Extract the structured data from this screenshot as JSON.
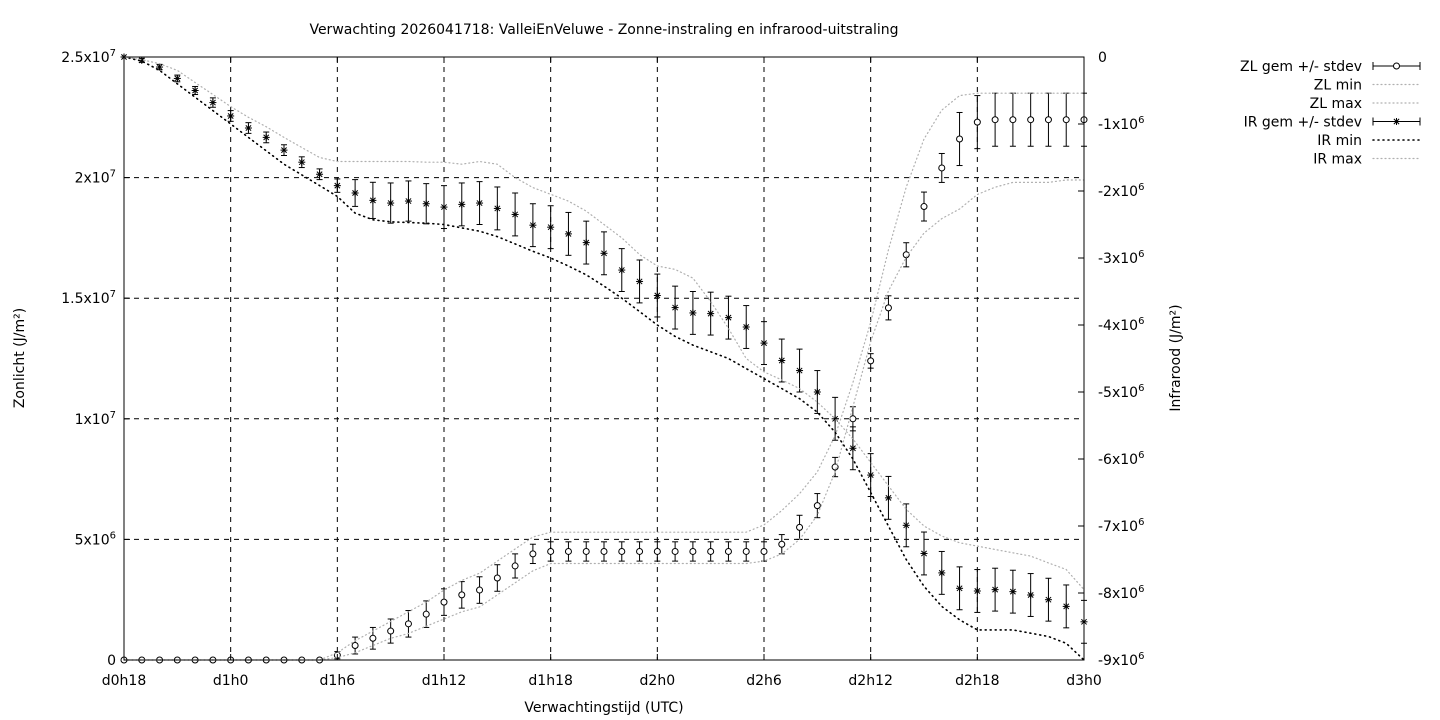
{
  "chart_data": {
    "type": "line",
    "title": "Verwachting 2026041718: ValleiEnVeluwe - Zonne-instraling en infrarood-uitstraling",
    "xlabel": "Verwachtingstijd (UTC)",
    "ylabel": "Zonlicht (J/m²)",
    "y2label": "Infrarood (J/m²)",
    "x_unit": "hours since d0h18",
    "xlim": [
      0,
      54
    ],
    "ylim": [
      0,
      25000000
    ],
    "y2lim": [
      -9000000,
      0
    ],
    "grid": true,
    "legend_position": "outside-right",
    "x_ticks": [
      {
        "value": 0,
        "label": "d0h18"
      },
      {
        "value": 6,
        "label": "d1h0"
      },
      {
        "value": 12,
        "label": "d1h6"
      },
      {
        "value": 18,
        "label": "d1h12"
      },
      {
        "value": 24,
        "label": "d1h18"
      },
      {
        "value": 30,
        "label": "d2h0"
      },
      {
        "value": 36,
        "label": "d2h6"
      },
      {
        "value": 42,
        "label": "d2h12"
      },
      {
        "value": 48,
        "label": "d2h18"
      },
      {
        "value": 54,
        "label": "d3h0"
      }
    ],
    "y_ticks": [
      {
        "value": 0,
        "mant": "0",
        "exp": ""
      },
      {
        "value": 5000000,
        "mant": "5x10",
        "exp": "6"
      },
      {
        "value": 10000000,
        "mant": "1x10",
        "exp": "7"
      },
      {
        "value": 15000000,
        "mant": "1.5x10",
        "exp": "7"
      },
      {
        "value": 20000000,
        "mant": "2x10",
        "exp": "7"
      },
      {
        "value": 25000000,
        "mant": "2.5x10",
        "exp": "7"
      }
    ],
    "y2_ticks": [
      {
        "value": 0,
        "mant": "0",
        "exp": ""
      },
      {
        "value": -1000000,
        "mant": "-1x10",
        "exp": "6"
      },
      {
        "value": -2000000,
        "mant": "-2x10",
        "exp": "6"
      },
      {
        "value": -3000000,
        "mant": "-3x10",
        "exp": "6"
      },
      {
        "value": -4000000,
        "mant": "-4x10",
        "exp": "6"
      },
      {
        "value": -5000000,
        "mant": "-5x10",
        "exp": "6"
      },
      {
        "value": -6000000,
        "mant": "-6x10",
        "exp": "6"
      },
      {
        "value": -7000000,
        "mant": "-7x10",
        "exp": "6"
      },
      {
        "value": -8000000,
        "mant": "-8x10",
        "exp": "6"
      },
      {
        "value": -9000000,
        "mant": "-9x10",
        "exp": "6"
      }
    ],
    "legend": [
      {
        "label": "ZL gem +/- stdev",
        "style": "errorbar-circle"
      },
      {
        "label": "ZL min",
        "style": "dotted-light"
      },
      {
        "label": "ZL max",
        "style": "dotted-light"
      },
      {
        "label": "IR gem +/- stdev",
        "style": "errorbar-star"
      },
      {
        "label": "IR min",
        "style": "dotted-dark"
      },
      {
        "label": "IR max",
        "style": "dotted-light"
      }
    ],
    "x": [
      0,
      1,
      2,
      3,
      4,
      5,
      6,
      7,
      8,
      9,
      10,
      11,
      12,
      13,
      14,
      15,
      16,
      17,
      18,
      19,
      20,
      21,
      22,
      23,
      24,
      25,
      26,
      27,
      28,
      29,
      30,
      31,
      32,
      33,
      34,
      35,
      36,
      37,
      38,
      39,
      40,
      41,
      42,
      43,
      44,
      45,
      46,
      47,
      48,
      49,
      50,
      51,
      52,
      53,
      54
    ],
    "series": [
      {
        "name": "ZL gem +/- stdev",
        "axis": "y1",
        "marker": "circle",
        "values": [
          0,
          0,
          0,
          0,
          0,
          0,
          0,
          0,
          0,
          0,
          0,
          0,
          200000,
          600000,
          900000,
          1200000,
          1500000,
          1900000,
          2400000,
          2700000,
          2900000,
          3400000,
          3900000,
          4400000,
          4500000,
          4500000,
          4500000,
          4500000,
          4500000,
          4500000,
          4500000,
          4500000,
          4500000,
          4500000,
          4500000,
          4500000,
          4500000,
          4800000,
          5500000,
          6400000,
          8000000,
          10000000,
          12400000,
          14600000,
          16800000,
          18800000,
          20400000,
          21600000,
          22300000,
          22400000,
          22400000,
          22400000,
          22400000,
          22400000,
          22400000
        ],
        "stdev": [
          0,
          0,
          0,
          0,
          0,
          0,
          0,
          0,
          0,
          0,
          0,
          0,
          150000,
          350000,
          450000,
          500000,
          550000,
          550000,
          550000,
          550000,
          550000,
          550000,
          500000,
          400000,
          400000,
          400000,
          400000,
          400000,
          400000,
          400000,
          400000,
          400000,
          400000,
          400000,
          400000,
          400000,
          400000,
          400000,
          500000,
          500000,
          400000,
          500000,
          300000,
          500000,
          500000,
          600000,
          600000,
          1100000,
          1100000,
          1100000,
          1100000,
          1100000,
          1100000,
          1100000,
          1100000
        ]
      },
      {
        "name": "ZL min",
        "axis": "y1",
        "values": [
          0,
          0,
          0,
          0,
          0,
          0,
          0,
          0,
          0,
          0,
          0,
          0,
          100000,
          300000,
          600000,
          900000,
          1100000,
          1400000,
          1700000,
          2000000,
          2200000,
          2700000,
          3200000,
          3700000,
          4000000,
          4000000,
          4000000,
          4000000,
          4000000,
          4000000,
          4000000,
          4000000,
          4000000,
          4000000,
          4000000,
          4000000,
          4100000,
          4400000,
          5000000,
          6000000,
          7800000,
          10500000,
          13200000,
          15300000,
          16700000,
          17700000,
          18300000,
          18700000,
          19300000,
          19600000,
          19800000,
          19800000,
          19800000,
          19900000,
          19900000
        ]
      },
      {
        "name": "ZL max",
        "axis": "y1",
        "values": [
          0,
          0,
          0,
          0,
          0,
          0,
          0,
          0,
          0,
          0,
          0,
          0,
          300000,
          800000,
          1200000,
          1600000,
          2000000,
          2400000,
          2900000,
          3300000,
          3600000,
          4100000,
          4600000,
          5100000,
          5300000,
          5300000,
          5300000,
          5300000,
          5300000,
          5300000,
          5300000,
          5300000,
          5300000,
          5300000,
          5300000,
          5300000,
          5600000,
          6200000,
          6900000,
          7800000,
          9300000,
          11500000,
          14000000,
          17000000,
          19600000,
          21600000,
          22800000,
          23400000,
          23500000,
          23500000,
          23500000,
          23500000,
          23500000,
          23500000,
          23500000
        ]
      },
      {
        "name": "IR gem +/- stdev",
        "axis": "y2",
        "marker": "star",
        "values": [
          0,
          -50000,
          -150000,
          -320000,
          -500000,
          -680000,
          -880000,
          -1060000,
          -1200000,
          -1390000,
          -1570000,
          -1750000,
          -1920000,
          -2030000,
          -2140000,
          -2180000,
          -2150000,
          -2190000,
          -2240000,
          -2200000,
          -2180000,
          -2260000,
          -2350000,
          -2510000,
          -2540000,
          -2640000,
          -2770000,
          -2930000,
          -3180000,
          -3350000,
          -3560000,
          -3740000,
          -3820000,
          -3830000,
          -3890000,
          -4030000,
          -4270000,
          -4530000,
          -4680000,
          -5000000,
          -5400000,
          -5840000,
          -6240000,
          -6580000,
          -6990000,
          -7410000,
          -7700000,
          -7930000,
          -7970000,
          -7950000,
          -7980000,
          -8030000,
          -8100000,
          -8200000,
          -8430000
        ],
        "stdev": [
          0,
          30000,
          40000,
          50000,
          60000,
          70000,
          80000,
          80000,
          80000,
          80000,
          80000,
          80000,
          100000,
          200000,
          270000,
          300000,
          300000,
          300000,
          320000,
          320000,
          320000,
          320000,
          320000,
          320000,
          320000,
          320000,
          320000,
          320000,
          320000,
          320000,
          320000,
          320000,
          320000,
          320000,
          320000,
          320000,
          320000,
          320000,
          320000,
          320000,
          320000,
          320000,
          320000,
          320000,
          320000,
          320000,
          320000,
          320000,
          320000,
          320000,
          320000,
          320000,
          320000,
          320000,
          320000
        ]
      },
      {
        "name": "IR min",
        "axis": "y2",
        "values": [
          0,
          -60000,
          -200000,
          -400000,
          -600000,
          -800000,
          -1000000,
          -1200000,
          -1400000,
          -1600000,
          -1760000,
          -1920000,
          -2080000,
          -2330000,
          -2430000,
          -2460000,
          -2470000,
          -2480000,
          -2500000,
          -2550000,
          -2600000,
          -2680000,
          -2790000,
          -2900000,
          -3000000,
          -3120000,
          -3250000,
          -3420000,
          -3600000,
          -3800000,
          -4000000,
          -4170000,
          -4300000,
          -4400000,
          -4500000,
          -4650000,
          -4800000,
          -4950000,
          -5100000,
          -5300000,
          -5600000,
          -6000000,
          -6500000,
          -7000000,
          -7500000,
          -7900000,
          -8200000,
          -8400000,
          -8550000,
          -8550000,
          -8550000,
          -8600000,
          -8650000,
          -8750000,
          -9000000
        ]
      },
      {
        "name": "IR max",
        "axis": "y2",
        "values": [
          0,
          -40000,
          -100000,
          -200000,
          -380000,
          -560000,
          -740000,
          -900000,
          -1040000,
          -1200000,
          -1350000,
          -1500000,
          -1560000,
          -1560000,
          -1560000,
          -1560000,
          -1560000,
          -1570000,
          -1570000,
          -1600000,
          -1560000,
          -1600000,
          -1800000,
          -1950000,
          -2050000,
          -2150000,
          -2300000,
          -2500000,
          -2700000,
          -2950000,
          -3120000,
          -3170000,
          -3300000,
          -3650000,
          -4050000,
          -4500000,
          -4700000,
          -4820000,
          -4950000,
          -5150000,
          -5400000,
          -5700000,
          -6050000,
          -6400000,
          -6750000,
          -7000000,
          -7150000,
          -7250000,
          -7300000,
          -7350000,
          -7400000,
          -7450000,
          -7550000,
          -7650000,
          -7950000
        ]
      }
    ]
  }
}
